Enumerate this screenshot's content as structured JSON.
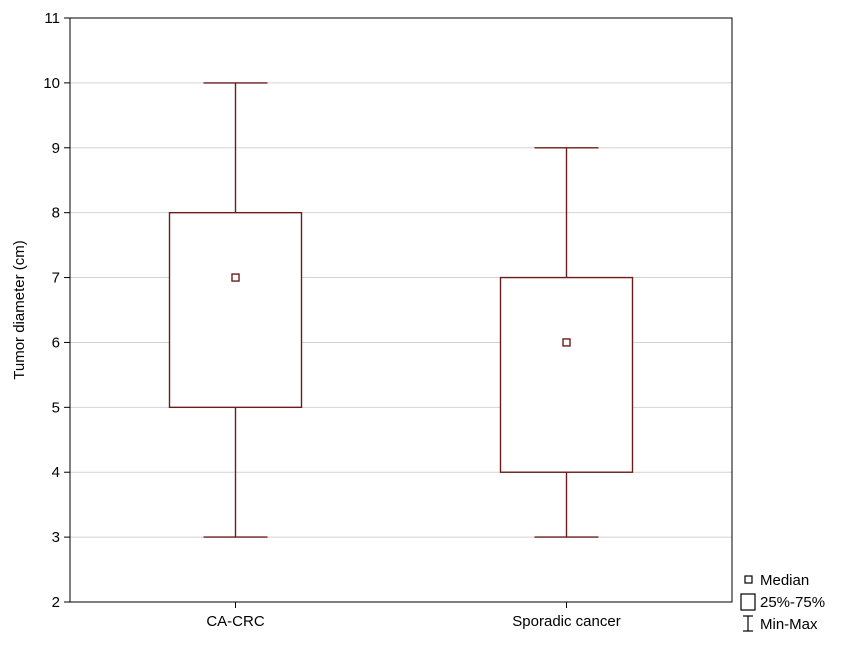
{
  "chart_data": {
    "type": "box",
    "title": "",
    "xlabel": "",
    "ylabel": "Tumor diameter (cm)",
    "ylim": [
      2,
      11
    ],
    "yticks": [
      "2",
      "3",
      "4",
      "5",
      "6",
      "7",
      "8",
      "9",
      "10",
      "11"
    ],
    "grid": true,
    "categories": [
      "CA-CRC",
      "Sporadic cancer"
    ],
    "series": [
      {
        "category": "CA-CRC",
        "min": 3,
        "q1": 5,
        "median": 7,
        "q3": 8,
        "max": 10
      },
      {
        "category": "Sporadic cancer",
        "min": 3,
        "q1": 4,
        "median": 6,
        "q3": 7,
        "max": 9
      }
    ],
    "legend": {
      "placement": "bottom-right",
      "items": [
        {
          "symbol": "median",
          "label": "Median"
        },
        {
          "symbol": "box",
          "label": "25%-75%"
        },
        {
          "symbol": "whisker",
          "label": "Min-Max"
        }
      ]
    },
    "colors": {
      "box": "#6b1d1d",
      "grid": "#d4d4d4",
      "axis": "#000000"
    }
  }
}
